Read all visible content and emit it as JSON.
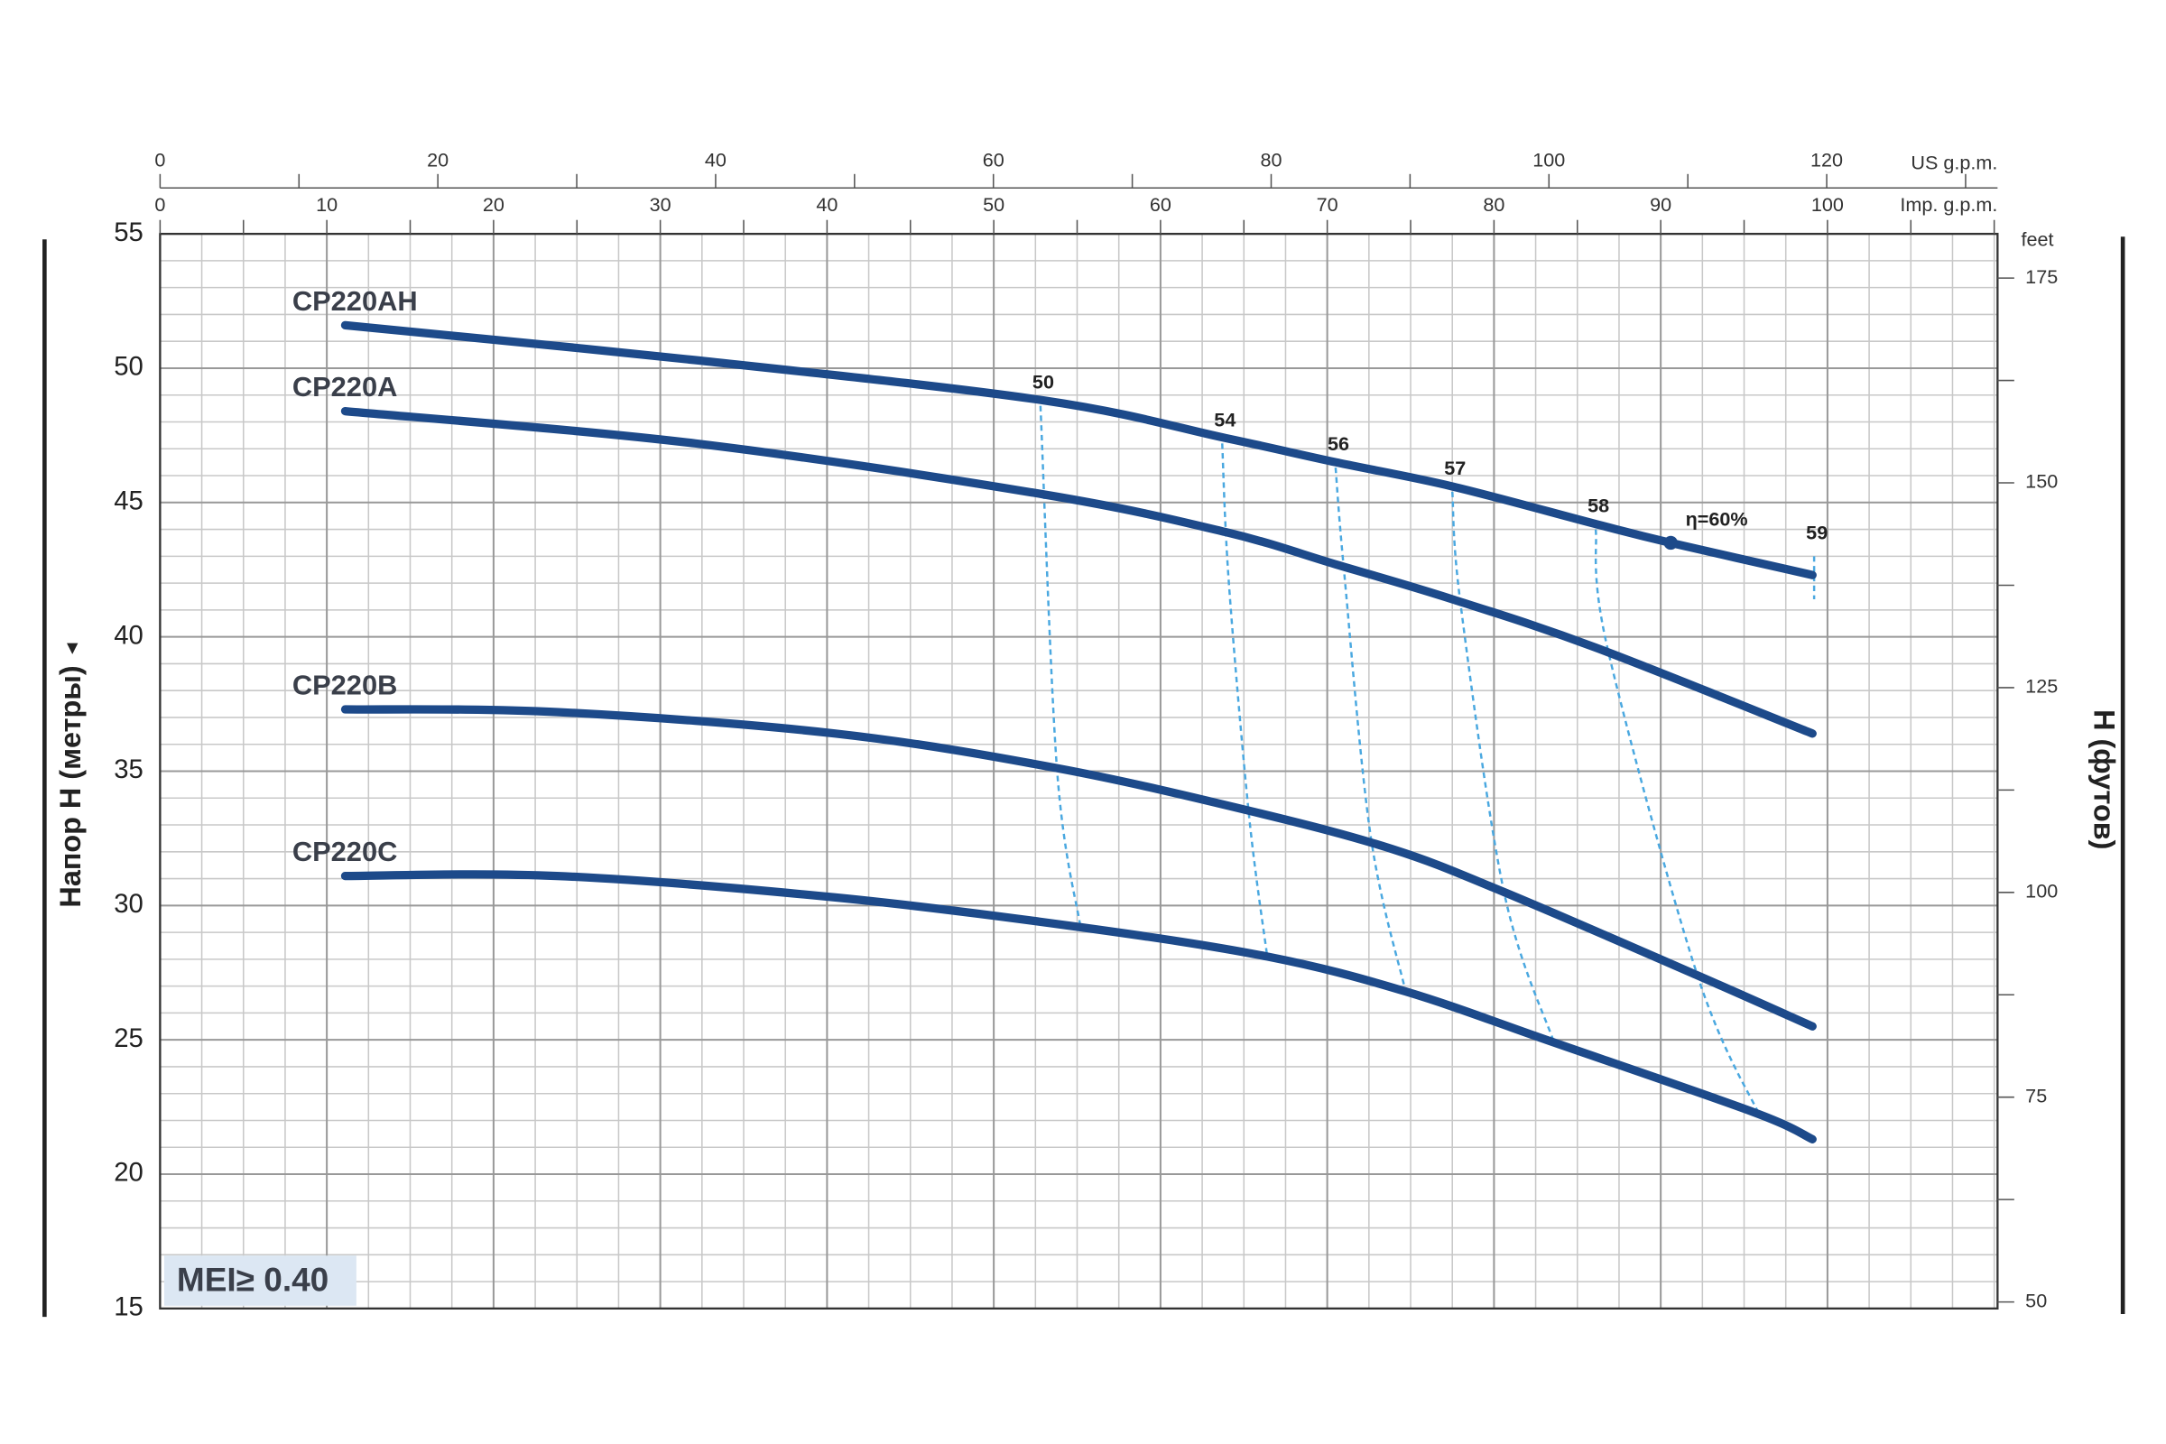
{
  "chart_data": {
    "type": "line",
    "x_label": "Imp. g.p.m.",
    "x2_label": "US g.p.m.",
    "y_label": "Напор H (метры)",
    "y2_label": "H (футов)",
    "y2_unit": "feet",
    "xlim": [
      0,
      110.2
    ],
    "xticks": [
      0,
      10,
      20,
      30,
      40,
      50,
      60,
      70,
      80,
      90,
      100
    ],
    "x_minor_step": 5,
    "x2lim": [
      0,
      132.3
    ],
    "x2ticks": [
      0,
      20,
      40,
      60,
      80,
      100,
      120
    ],
    "x2_minor_step": 10,
    "ylim": [
      15,
      55
    ],
    "yticks": [
      15,
      20,
      25,
      30,
      35,
      40,
      45,
      50,
      55
    ],
    "y2lim": [
      49.2,
      180.4
    ],
    "y2ticks": [
      50,
      75,
      100,
      125,
      150,
      175
    ],
    "y2_minor_step": 12.5,
    "grid": true,
    "grid_x_step": 2.5,
    "grid_y_step": 1,
    "series": [
      {
        "name": "CP220AH",
        "color": "#1d4a8a",
        "x": [
          11.1,
          32.1,
          53.0,
          63.9,
          70.5,
          77.5,
          86.1,
          90.6,
          99.1
        ],
        "y": [
          51.6,
          50.3,
          48.8,
          47.4,
          46.5,
          45.6,
          44.2,
          43.5,
          42.3
        ]
      },
      {
        "name": "CP220A",
        "color": "#1d4a8a",
        "x": [
          11.1,
          32.1,
          53.0,
          63.9,
          70.5,
          77.5,
          86.1,
          99.1
        ],
        "y": [
          48.4,
          47.2,
          45.3,
          43.9,
          42.7,
          41.4,
          39.6,
          36.4
        ]
      },
      {
        "name": "CP220B",
        "color": "#1d4a8a",
        "x": [
          11.1,
          23.8,
          40.5,
          53.9,
          65.5,
          73.9,
          80.6,
          92.2,
          99.1
        ],
        "y": [
          37.3,
          37.2,
          36.4,
          35.1,
          33.5,
          32.1,
          30.5,
          27.4,
          25.5
        ]
      },
      {
        "name": "CP220C",
        "color": "#1d4a8a",
        "x": [
          11.1,
          23.8,
          40.5,
          55.1,
          66.4,
          74.7,
          83.6,
          95.6,
          99.1
        ],
        "y": [
          31.1,
          31.1,
          30.3,
          29.2,
          28.1,
          26.8,
          24.9,
          22.3,
          21.3
        ]
      }
    ],
    "efficiency_color": "#4aa8e0",
    "efficiency_lines": [
      {
        "label": 50,
        "x": [
          52.8,
          53.8,
          55.2
        ],
        "y": [
          48.6,
          35.0,
          29.2
        ]
      },
      {
        "label": 54,
        "x": [
          63.7,
          64.1,
          65.3,
          66.4
        ],
        "y": [
          47.2,
          42.0,
          33.4,
          28.1
        ]
      },
      {
        "label": 56,
        "x": [
          70.5,
          71.0,
          72.6,
          74.7
        ],
        "y": [
          46.3,
          42.5,
          32.6,
          26.8
        ]
      },
      {
        "label": 57,
        "x": [
          77.5,
          78.0,
          80.6,
          83.6
        ],
        "y": [
          45.4,
          41.2,
          30.5,
          24.9
        ]
      },
      {
        "label": 58,
        "x": [
          86.1,
          86.8,
          92.2,
          96.0
        ],
        "y": [
          44.0,
          39.6,
          27.4,
          22.1
        ]
      },
      {
        "label": 59,
        "x": [
          99.2,
          99.2
        ],
        "y": [
          43.0,
          41.4
        ]
      }
    ],
    "best_efficiency": {
      "label": "η=60%",
      "value": 60,
      "x": 90.6,
      "y": 43.5
    },
    "annotation": "MEI≥ 0.40"
  }
}
